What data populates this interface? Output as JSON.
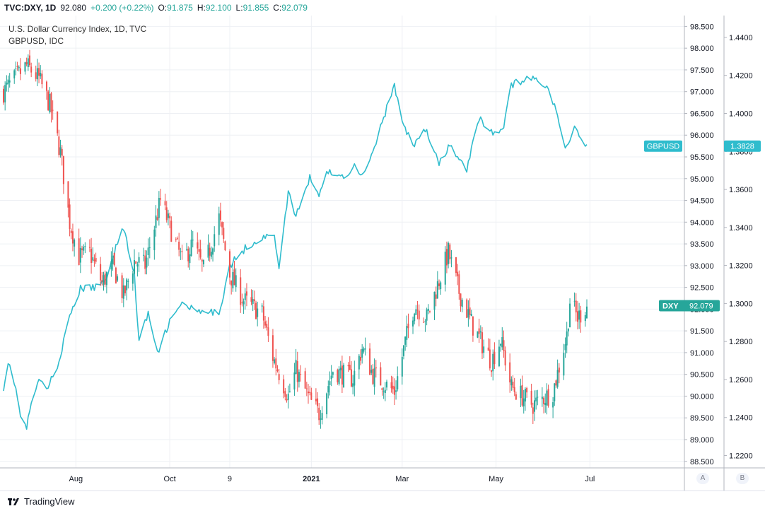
{
  "header": {
    "symbol": "TVC:DXY, 1D",
    "last": "92.080",
    "change": "+0.200 (+0.22%)",
    "open_label": "O:",
    "open": "91.875",
    "high_label": "H:",
    "high": "92.100",
    "low_label": "L:",
    "low": "91.855",
    "close_label": "C:",
    "close": "92.079"
  },
  "legend": {
    "main": "U.S. Dollar Currency Index, 1D, TVC",
    "overlay": "GBPUSD, IDC"
  },
  "footer": {
    "brand": "TradingView",
    "scale_a": "A",
    "scale_b": "B"
  },
  "colors": {
    "up": "#26a69a",
    "down": "#ef5350",
    "gbpusd_line": "#2fbccd",
    "dxy_badge": "#26a69a",
    "gbp_badge": "#2fbccd"
  },
  "chart_data": {
    "type": "candlestick_with_line_overlay",
    "title": "U.S. Dollar Currency Index, 1D, TVC",
    "x_tick_labels": [
      "Aug",
      "Oct",
      "9",
      "2021",
      "Mar",
      "May",
      "Jul"
    ],
    "left_price_axis": {
      "labels": [
        "98.500",
        "98.000",
        "97.500",
        "97.000",
        "96.500",
        "96.000",
        "95.500",
        "95.000",
        "94.500",
        "94.000",
        "93.500",
        "93.000",
        "92.500",
        "92.000",
        "91.500",
        "91.000",
        "90.500",
        "90.000",
        "89.500",
        "89.000",
        "88.500"
      ],
      "range": [
        88.35,
        98.75
      ]
    },
    "right_price_axis": {
      "labels": [
        "1.4400",
        "1.4200",
        "1.4000",
        "1.3800",
        "1.3600",
        "1.3400",
        "1.3200",
        "1.3000",
        "1.2800",
        "1.2600",
        "1.2400",
        "1.2200"
      ],
      "range": [
        1.2135,
        1.4515
      ]
    },
    "series": [
      {
        "name": "DXY",
        "last_value_label": "92.079",
        "close_anchors": [
          [
            "2020-06-15",
            97.0
          ],
          [
            "2020-06-25",
            97.4
          ],
          [
            "2020-06-30",
            97.6
          ],
          [
            "2020-07-08",
            97.3
          ],
          [
            "2020-07-15",
            96.7
          ],
          [
            "2020-07-22",
            95.6
          ],
          [
            "2020-07-28",
            94.0
          ],
          [
            "2020-08-03",
            93.2
          ],
          [
            "2020-08-10",
            93.3
          ],
          [
            "2020-08-18",
            92.6
          ],
          [
            "2020-08-25",
            93.0
          ],
          [
            "2020-09-01",
            92.3
          ],
          [
            "2020-09-08",
            93.1
          ],
          [
            "2020-09-15",
            93.0
          ],
          [
            "2020-09-25",
            94.5
          ],
          [
            "2020-10-02",
            93.8
          ],
          [
            "2020-10-09",
            93.1
          ],
          [
            "2020-10-16",
            93.5
          ],
          [
            "2020-10-23",
            92.9
          ],
          [
            "2020-11-02",
            94.1
          ],
          [
            "2020-11-09",
            92.8
          ],
          [
            "2020-11-18",
            92.2
          ],
          [
            "2020-11-30",
            91.9
          ],
          [
            "2020-12-07",
            90.9
          ],
          [
            "2020-12-17",
            90.0
          ],
          [
            "2020-12-22",
            90.6
          ],
          [
            "2020-12-31",
            89.9
          ],
          [
            "2021-01-06",
            89.6
          ],
          [
            "2021-01-15",
            90.6
          ],
          [
            "2021-01-28",
            90.4
          ],
          [
            "2021-02-03",
            91.1
          ],
          [
            "2021-02-10",
            90.5
          ],
          [
            "2021-02-24",
            90.1
          ],
          [
            "2021-03-04",
            91.4
          ],
          [
            "2021-03-09",
            92.1
          ],
          [
            "2021-03-17",
            91.8
          ],
          [
            "2021-03-31",
            93.3
          ],
          [
            "2021-04-07",
            92.4
          ],
          [
            "2021-04-16",
            91.6
          ],
          [
            "2021-04-28",
            90.8
          ],
          [
            "2021-05-04",
            91.3
          ],
          [
            "2021-05-11",
            90.2
          ],
          [
            "2021-05-25",
            89.8
          ],
          [
            "2021-06-07",
            90.1
          ],
          [
            "2021-06-16",
            91.4
          ],
          [
            "2021-06-18",
            92.2
          ],
          [
            "2021-06-23",
            91.8
          ],
          [
            "2021-06-29",
            92.08
          ]
        ]
      },
      {
        "name": "GBPUSD",
        "last_value_label": "1.3828",
        "close_anchors": [
          [
            "2020-06-15",
            1.256
          ],
          [
            "2020-06-18",
            1.269
          ],
          [
            "2020-06-22",
            1.259
          ],
          [
            "2020-06-26",
            1.241
          ],
          [
            "2020-06-30",
            1.234
          ],
          [
            "2020-07-03",
            1.248
          ],
          [
            "2020-07-08",
            1.259
          ],
          [
            "2020-07-14",
            1.256
          ],
          [
            "2020-07-20",
            1.267
          ],
          [
            "2020-07-24",
            1.28
          ],
          [
            "2020-07-29",
            1.295
          ],
          [
            "2020-08-04",
            1.308
          ],
          [
            "2020-08-12",
            1.308
          ],
          [
            "2020-08-20",
            1.312
          ],
          [
            "2020-08-27",
            1.33
          ],
          [
            "2020-09-01",
            1.34
          ],
          [
            "2020-09-08",
            1.315
          ],
          [
            "2020-09-11",
            1.28
          ],
          [
            "2020-09-17",
            1.295
          ],
          [
            "2020-09-23",
            1.273
          ],
          [
            "2020-09-30",
            1.289
          ],
          [
            "2020-10-09",
            1.3
          ],
          [
            "2020-10-20",
            1.295
          ],
          [
            "2020-11-02",
            1.295
          ],
          [
            "2020-11-09",
            1.32
          ],
          [
            "2020-11-20",
            1.33
          ],
          [
            "2020-12-01",
            1.335
          ],
          [
            "2020-12-08",
            1.335
          ],
          [
            "2020-12-11",
            1.32
          ],
          [
            "2020-12-17",
            1.358
          ],
          [
            "2020-12-22",
            1.346
          ],
          [
            "2020-12-31",
            1.366
          ],
          [
            "2021-01-06",
            1.358
          ],
          [
            "2021-01-12",
            1.37
          ],
          [
            "2021-01-20",
            1.366
          ],
          [
            "2021-01-29",
            1.372
          ],
          [
            "2021-02-04",
            1.368
          ],
          [
            "2021-02-12",
            1.385
          ],
          [
            "2021-02-24",
            1.415
          ],
          [
            "2021-03-01",
            1.395
          ],
          [
            "2021-03-08",
            1.383
          ],
          [
            "2021-03-16",
            1.392
          ],
          [
            "2021-03-25",
            1.373
          ],
          [
            "2021-04-01",
            1.383
          ],
          [
            "2021-04-12",
            1.37
          ],
          [
            "2021-04-20",
            1.398
          ],
          [
            "2021-04-28",
            1.39
          ],
          [
            "2021-05-05",
            1.39
          ],
          [
            "2021-05-11",
            1.415
          ],
          [
            "2021-05-20",
            1.418
          ],
          [
            "2021-05-28",
            1.418
          ],
          [
            "2021-06-04",
            1.414
          ],
          [
            "2021-06-10",
            1.398
          ],
          [
            "2021-06-15",
            1.381
          ],
          [
            "2021-06-21",
            1.393
          ],
          [
            "2021-06-29",
            1.3828
          ]
        ]
      }
    ]
  }
}
